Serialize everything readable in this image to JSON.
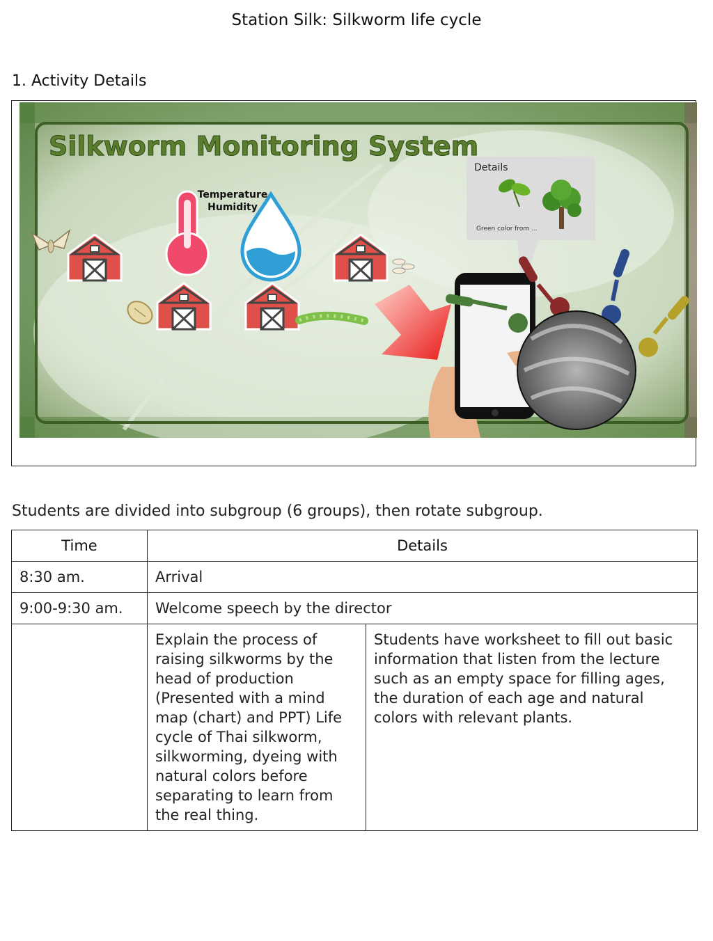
{
  "document": {
    "title": "Station Silk: Silkworm life cycle",
    "section_heading": "1. Activity Details",
    "intro": "Students are divided into subgroup (6 groups), then rotate subgroup."
  },
  "banner": {
    "title": "Silkworm Monitoring System",
    "sensor_label_1": "Temperature",
    "sensor_label_2": "Humidity",
    "details_popup": {
      "title": "Details",
      "caption": "Green color from ..."
    },
    "icons": [
      "barn-icon",
      "thermometer-icon",
      "water-drop-icon",
      "moth-icon",
      "cocoon-icon",
      "silkworm-icon",
      "eggs-icon",
      "smartphone-icon",
      "dropper-icon",
      "leaf-icon",
      "tree-icon",
      "silk-yarn-icon",
      "arrow-icon"
    ],
    "colors": {
      "title_green": "#5a7d2e",
      "barn_red": "#e0504a",
      "thermo_pink": "#ef4a6b",
      "water_blue": "#2f9fd6",
      "frame_green": "#3d5f25"
    }
  },
  "schedule": {
    "headers": {
      "time": "Time",
      "details": "Details"
    },
    "rows": [
      {
        "time": "8:30 am.",
        "details": "Arrival"
      },
      {
        "time": "9:00-9:30 am.",
        "details": "Welcome speech by the director"
      }
    ],
    "split_row": {
      "time": "",
      "activity": "Explain the process of raising silkworms by the head of production (Presented with a mind map (chart) and PPT) Life cycle of Thai silkworm, silkworming, dyeing with natural colors before separating to learn from the real thing.",
      "worksheet": "Students have worksheet to fill out basic information that listen from the lecture such as an empty space for filling ages, the duration of each age and natural colors with relevant plants."
    }
  }
}
